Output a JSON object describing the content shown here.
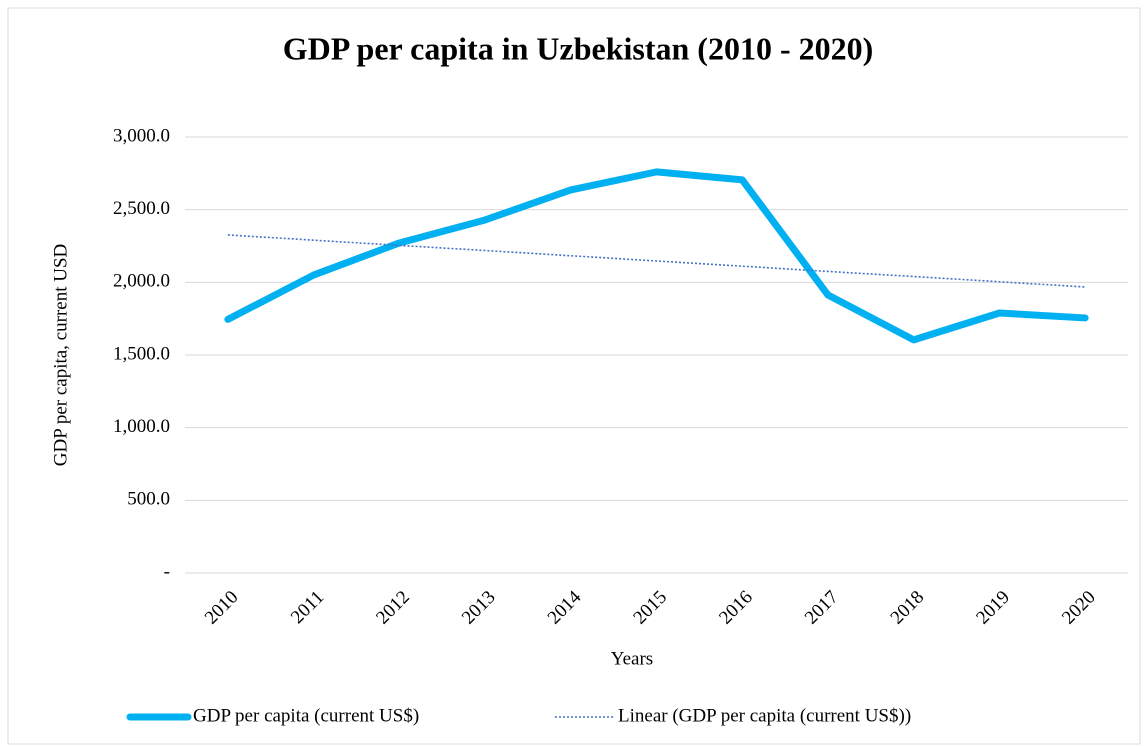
{
  "chart_data": {
    "type": "line",
    "title": "GDP per capita in Uzbekistan (2010 - 2020)",
    "x_label": "Years",
    "y_label": "GDP per capita,  current USD",
    "categories": [
      "2010",
      "2011",
      "2012",
      "2013",
      "2014",
      "2015",
      "2016",
      "2017",
      "2018",
      "2019",
      "2020"
    ],
    "series": [
      {
        "name": "GDP per capita (current US$)",
        "color": "#00b0f0",
        "style": "solid",
        "values": [
          1745,
          2050,
          2271,
          2429,
          2636,
          2760,
          2705,
          1913,
          1604,
          1789,
          1755
        ]
      },
      {
        "name": "Linear (GDP per capita (current US$))",
        "color": "#4472c4",
        "style": "dotted",
        "values": [
          2326,
          2290,
          2254,
          2219,
          2183,
          2147,
          2111,
          2075,
          2040,
          2004,
          1968
        ]
      }
    ],
    "ylim": [
      0,
      3000
    ],
    "yticks": [
      {
        "value": 0,
        "label": "-"
      },
      {
        "value": 500,
        "label": "500.0"
      },
      {
        "value": 1000,
        "label": "1,000.0"
      },
      {
        "value": 1500,
        "label": "1,500.0"
      },
      {
        "value": 2000,
        "label": "2,000.0"
      },
      {
        "value": 2500,
        "label": "2,500.0"
      },
      {
        "value": 3000,
        "label": "3,000.0"
      }
    ],
    "grid": true,
    "legend": "bottom"
  }
}
